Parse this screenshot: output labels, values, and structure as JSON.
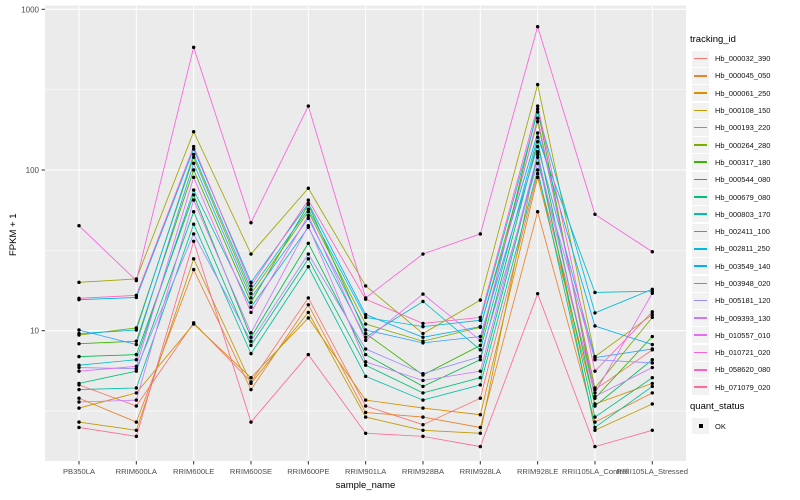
{
  "figure": {
    "background": "#FFFFFF",
    "panel_background": "#EBEBEB",
    "grid_color": "#FFFFFF",
    "tick_label_color": "#4D4D4D",
    "tick_mark_color": "#333333"
  },
  "legend": {
    "tracking_title": "tracking_id",
    "quant_title": "quant_status",
    "quant_items": [
      {
        "label": "OK"
      }
    ],
    "key_background": "#F2F2F2"
  },
  "chart_data": {
    "type": "line",
    "title": "",
    "x_label": "sample_name",
    "y_label": "FPKM + 1",
    "y_scale": "log10",
    "ylim": [
      1.5,
      1050
    ],
    "y_ticks": [
      10,
      100,
      1000
    ],
    "y_tick_labels": [
      "10",
      "100",
      "1000"
    ],
    "y_minor_gridlines": [
      3.162,
      31.62,
      316.2
    ],
    "grid": true,
    "legend_position": "right",
    "point_color": "#000000",
    "quant_status": "OK",
    "categories": [
      "PB350LA",
      "RRIM600LA",
      "RRIM600LE",
      "RRIM600SE",
      "RRIM600PE",
      "RRIM901LA",
      "RRIM928BA",
      "RRIM928LA",
      "RRIM928LE",
      "RRII105LA_Control",
      "RRII105LA_Stressed"
    ],
    "series": [
      {
        "name": "Hb_000032_390",
        "color": "#F8766D",
        "values": [
          4.6,
          3.4,
          11.2,
          4.8,
          16,
          3.4,
          2.6,
          3.8,
          95,
          4.3,
          7.6
        ]
      },
      {
        "name": "Hb_000045_050",
        "color": "#EA8331",
        "values": [
          3.8,
          2.7,
          24,
          4.3,
          14.5,
          3.1,
          2.9,
          2.5,
          55,
          2.7,
          4.1
        ]
      },
      {
        "name": "Hb_000061_250",
        "color": "#D89000",
        "values": [
          3.3,
          4.1,
          11,
          5.1,
          12,
          3.7,
          3.3,
          3.0,
          90,
          3.5,
          4.7
        ]
      },
      {
        "name": "Hb_000108_150",
        "color": "#C09B00",
        "values": [
          2.7,
          2.4,
          28,
          4.7,
          13,
          2.9,
          2.4,
          2.3,
          130,
          2.4,
          3.5
        ]
      },
      {
        "name": "Hb_000193_220",
        "color": "#A3A500",
        "values": [
          20,
          21,
          173,
          30,
          77,
          19,
          9.6,
          15.5,
          340,
          6.9,
          12.6
        ]
      },
      {
        "name": "Hb_000264_280",
        "color": "#7CAE00",
        "values": [
          9.4,
          10.4,
          120,
          17,
          55,
          11,
          8.6,
          10.5,
          200,
          4.4,
          12.1
        ]
      },
      {
        "name": "Hb_000317_180",
        "color": "#39B600",
        "values": [
          8.3,
          8.6,
          100,
          15,
          61,
          9.6,
          5.3,
          8.1,
          240,
          3.8,
          9.2
        ]
      },
      {
        "name": "Hb_000544_080",
        "color": "#00BB4E",
        "values": [
          6.9,
          7.1,
          70,
          9.1,
          35,
          7.1,
          4.5,
          6.6,
          150,
          3.4,
          6.6
        ]
      },
      {
        "name": "Hb_000679_080",
        "color": "#00BF7D",
        "values": [
          4.7,
          5.6,
          55,
          8.1,
          28,
          6.1,
          4.1,
          5.1,
          120,
          2.9,
          5.1
        ]
      },
      {
        "name": "Hb_000803_170",
        "color": "#00C1A3",
        "values": [
          4.3,
          4.4,
          46,
          7.2,
          25,
          5.2,
          3.7,
          4.6,
          100,
          2.5,
          4.5
        ]
      },
      {
        "name": "Hb_002411_100",
        "color": "#00BFC4",
        "values": [
          6.1,
          6.6,
          75,
          14,
          44,
          9.1,
          15.2,
          7.6,
          160,
          17.3,
          17.6
        ]
      },
      {
        "name": "Hb_002811_250",
        "color": "#00BAE0",
        "values": [
          9.6,
          10.1,
          125,
          18,
          57,
          12.1,
          10.6,
          11.6,
          230,
          12.9,
          18.1
        ]
      },
      {
        "name": "Hb_003549_140",
        "color": "#00B0F6",
        "values": [
          15.6,
          16.1,
          135,
          20,
          62,
          12.6,
          9.1,
          10.6,
          170,
          10.7,
          8.2
        ]
      },
      {
        "name": "Hb_003948_020",
        "color": "#35A2FF",
        "values": [
          10.1,
          8.2,
          110,
          16,
          50,
          10.1,
          8.4,
          9.2,
          140,
          6.8,
          7.7
        ]
      },
      {
        "name": "Hb_005181_120",
        "color": "#9590FF",
        "values": [
          5.9,
          5.8,
          40,
          8.6,
          30,
          7.7,
          5.4,
          6.9,
          110,
          6.6,
          6.3
        ]
      },
      {
        "name": "Hb_009393_130",
        "color": "#C77CFF",
        "values": [
          3.6,
          3.7,
          65,
          9.7,
          45,
          6.4,
          4.9,
          5.6,
          125,
          3.9,
          5.9
        ]
      },
      {
        "name": "Hb_010557_010",
        "color": "#E76BF3",
        "values": [
          5.6,
          6.0,
          90,
          13,
          52,
          8.7,
          16.9,
          8.7,
          210,
          4.1,
          17.1
        ]
      },
      {
        "name": "Hb_010721_020",
        "color": "#FA62DB",
        "values": [
          45,
          20.5,
          580,
          47,
          250,
          16,
          30,
          40,
          780,
          53,
          31
        ]
      },
      {
        "name": "Hb_058620_080",
        "color": "#FF62BC",
        "values": [
          15.9,
          16.6,
          140,
          19,
          65,
          15.7,
          11.1,
          12.1,
          250,
          5.6,
          13.1
        ]
      },
      {
        "name": "Hb_071079_020",
        "color": "#FF6A98",
        "values": [
          2.5,
          2.2,
          36,
          2.7,
          7.1,
          2.3,
          2.2,
          1.9,
          17,
          1.9,
          2.4
        ]
      }
    ]
  }
}
